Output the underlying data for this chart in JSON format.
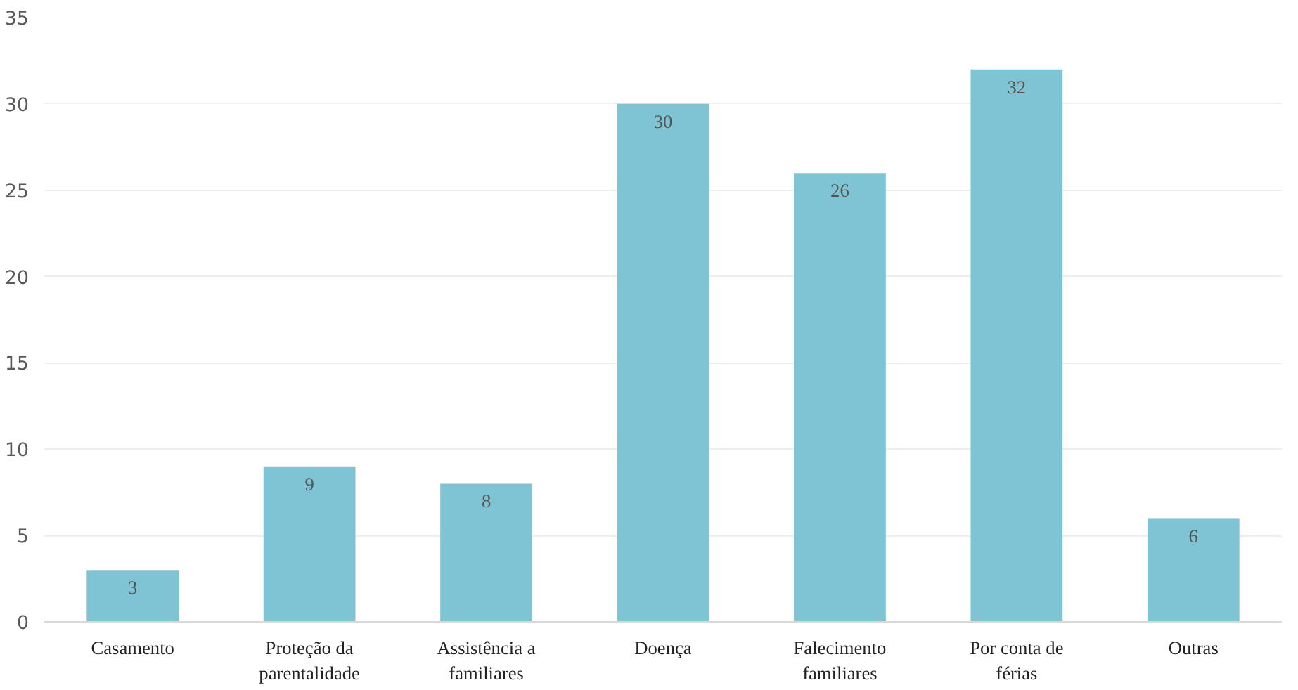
{
  "chart_data": {
    "type": "bar",
    "categories": [
      "Casamento",
      "Proteção da\nparentalidade",
      "Assistência a\nfamiliares",
      "Doença",
      "Falecimento\nfamiliares",
      "Por conta de\nférias",
      "Outras"
    ],
    "values": [
      3,
      9,
      8,
      30,
      26,
      32,
      6
    ],
    "color": "#7fc4d4",
    "ylim": [
      0,
      35
    ],
    "yticks": [
      0,
      5,
      10,
      15,
      20,
      25,
      30,
      35
    ],
    "grid": "y",
    "data_labels": true
  }
}
